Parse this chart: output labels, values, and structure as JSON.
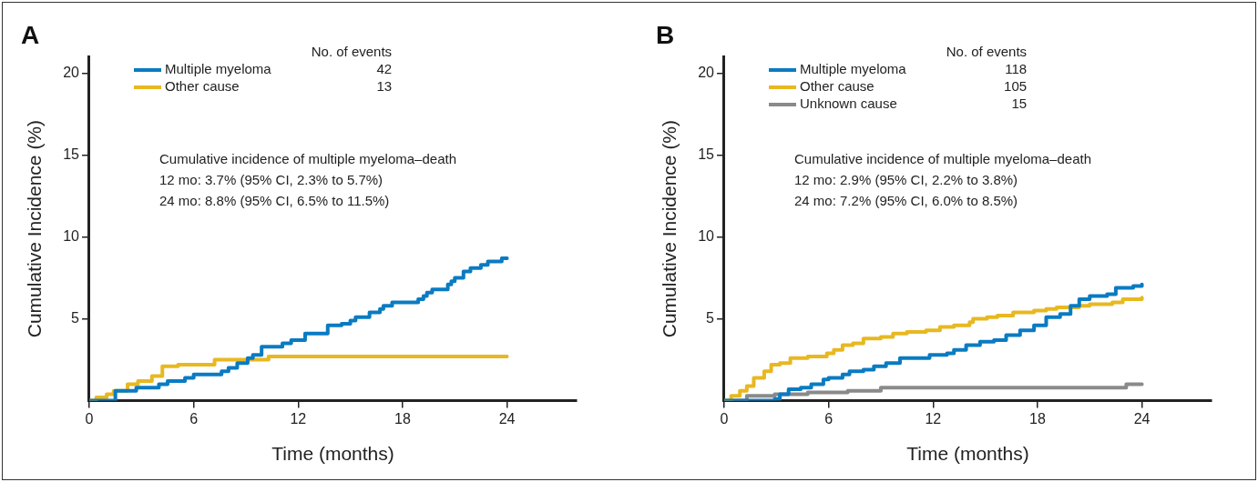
{
  "chart_data": [
    {
      "type": "step",
      "title": "A",
      "xlabel": "Time (months)",
      "ylabel": "Cumulative Incidence (%)",
      "legend_title": "No. of events",
      "legend": "top left",
      "grid": false,
      "marker": "none",
      "xlim": [
        0,
        28
      ],
      "xticks": [
        0,
        6,
        12,
        18,
        24
      ],
      "ylim": [
        0,
        21
      ],
      "yticks": [
        5,
        10,
        15,
        20
      ],
      "annotations": [
        "42",
        "13",
        "Cumulative incidence of multiple myeloma–death",
        "12 mo: 3.7% (95% CI, 2.3% to 5.7%)",
        "24 mo: 8.8% (95% CI, 6.5% to 11.5%)"
      ],
      "series": [
        {
          "name": "Multiple myeloma",
          "color": "#0a7bc2",
          "x": [
            0,
            1.3,
            1.5,
            2.7,
            4.0,
            4.5,
            5.5,
            6.0,
            7.6,
            8.0,
            8.5,
            9.1,
            9.4,
            9.9,
            11.1,
            11.6,
            12.4,
            13.7,
            14.5,
            15.0,
            15.3,
            16.1,
            16.7,
            16.9,
            17.4,
            18.9,
            19.2,
            19.4,
            19.7,
            20.6,
            20.8,
            21.0,
            21.5,
            21.9,
            22.5,
            22.9,
            23.7,
            24
          ],
          "values": [
            0,
            0,
            0.6,
            0.8,
            1.0,
            1.2,
            1.4,
            1.6,
            1.8,
            2.0,
            2.3,
            2.6,
            2.8,
            3.3,
            3.5,
            3.7,
            4.1,
            4.6,
            4.7,
            4.9,
            5.1,
            5.4,
            5.6,
            5.8,
            6.0,
            6.2,
            6.4,
            6.6,
            6.8,
            7.1,
            7.3,
            7.5,
            7.9,
            8.1,
            8.3,
            8.5,
            8.7,
            8.7
          ]
        },
        {
          "name": "Other cause",
          "color": "#e8b820",
          "x": [
            0,
            0.4,
            1.0,
            1.4,
            2.2,
            2.8,
            3.6,
            4.2,
            5.1,
            7.2,
            10.3,
            24
          ],
          "values": [
            0,
            0.2,
            0.4,
            0.6,
            1.0,
            1.2,
            1.5,
            2.1,
            2.2,
            2.5,
            2.7,
            2.7
          ]
        }
      ]
    },
    {
      "type": "step",
      "title": "B",
      "xlabel": "Time (months)",
      "ylabel": "Cumulative Incidence (%)",
      "legend_title": "No. of events",
      "legend": "top left",
      "grid": false,
      "marker": "none",
      "xlim": [
        0,
        28
      ],
      "xticks": [
        0,
        6,
        12,
        18,
        24
      ],
      "ylim": [
        0,
        21
      ],
      "yticks": [
        5,
        10,
        15,
        20
      ],
      "annotations": [
        "118",
        "105",
        "15",
        "Cumulative incidence of multiple myeloma–death",
        "12 mo: 2.9% (95% CI, 2.2% to 3.8%)",
        "24 mo: 7.2% (95% CI, 6.0% to 8.5%)"
      ],
      "series": [
        {
          "name": "Multiple myeloma",
          "color": "#0a7bc2",
          "x": [
            0,
            2.9,
            3.2,
            3.7,
            4.4,
            5.0,
            5.7,
            6.0,
            6.8,
            7.2,
            8.0,
            8.6,
            9.3,
            10.1,
            11.3,
            11.8,
            12.8,
            13.2,
            13.9,
            14.7,
            15.5,
            16.2,
            17.0,
            17.8,
            18.5,
            19.3,
            19.9,
            20.4,
            21.0,
            22.0,
            22.5,
            23.5,
            24
          ],
          "values": [
            0,
            0.1,
            0.4,
            0.7,
            0.8,
            1.0,
            1.3,
            1.4,
            1.6,
            1.8,
            1.9,
            2.1,
            2.3,
            2.6,
            2.6,
            2.8,
            2.9,
            3.1,
            3.4,
            3.6,
            3.7,
            4.0,
            4.3,
            4.6,
            5.1,
            5.3,
            5.8,
            6.2,
            6.4,
            6.5,
            6.9,
            7.0,
            7.1
          ]
        },
        {
          "name": "Other cause",
          "color": "#e8b820",
          "x": [
            0,
            0.4,
            0.9,
            1.3,
            1.7,
            2.3,
            2.7,
            3.2,
            3.8,
            4.8,
            5.9,
            6.3,
            6.8,
            7.4,
            8.0,
            9.0,
            9.7,
            10.5,
            11.6,
            12.4,
            13.2,
            14.1,
            14.3,
            15.1,
            15.7,
            16.6,
            17.8,
            18.5,
            19.1,
            20.4,
            21.0,
            22.3,
            22.9,
            24
          ],
          "values": [
            0,
            0.3,
            0.6,
            0.9,
            1.4,
            1.8,
            2.2,
            2.3,
            2.6,
            2.7,
            2.9,
            3.1,
            3.4,
            3.5,
            3.8,
            3.9,
            4.1,
            4.2,
            4.3,
            4.5,
            4.6,
            4.8,
            5.0,
            5.1,
            5.2,
            5.4,
            5.5,
            5.6,
            5.7,
            5.8,
            5.9,
            6.0,
            6.2,
            6.3
          ]
        },
        {
          "name": "Unknown cause",
          "color": "#8a8a8a",
          "x": [
            0,
            1.3,
            2.9,
            4.8,
            7.1,
            9.0,
            11.6,
            23.1,
            24
          ],
          "values": [
            0,
            0.3,
            0.4,
            0.5,
            0.6,
            0.8,
            0.8,
            1.0,
            1.0
          ]
        }
      ]
    }
  ]
}
